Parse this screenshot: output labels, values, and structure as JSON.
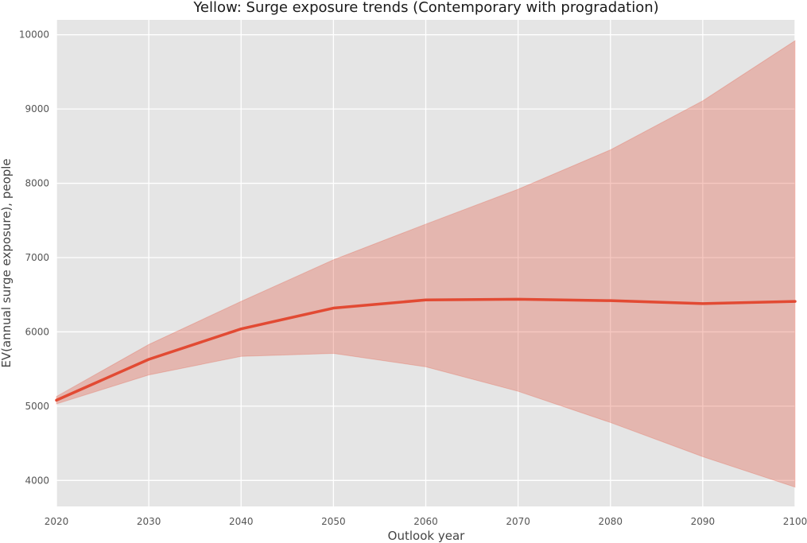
{
  "chart_data": {
    "type": "line",
    "title": "Yellow: Surge exposure trends (Contemporary with progradation)",
    "xlabel": "Outlook year",
    "ylabel": "EV(annual surge exposure), people",
    "xlim": [
      2020,
      2100
    ],
    "ylim": [
      3650,
      10200
    ],
    "x_ticks": [
      2020,
      2030,
      2040,
      2050,
      2060,
      2070,
      2080,
      2090,
      2100
    ],
    "y_ticks": [
      4000,
      5000,
      6000,
      7000,
      8000,
      9000,
      10000
    ],
    "grid": true,
    "legend": "none",
    "background_color": "#e5e5e5",
    "grid_color": "#ffffff",
    "series": [
      {
        "x": [
          2020,
          2030,
          2040,
          2050,
          2060,
          2070,
          2080,
          2090,
          2100
        ],
        "values": [
          5080,
          5630,
          6040,
          6320,
          6430,
          6440,
          6420,
          6380,
          6410
        ],
        "lower": [
          5030,
          5420,
          5670,
          5710,
          5530,
          5200,
          4780,
          4320,
          3910
        ],
        "upper": [
          5130,
          5830,
          6410,
          6970,
          7450,
          7920,
          8450,
          9110,
          9920
        ],
        "color": "#e24a33",
        "band_color": "#e24a33"
      }
    ]
  }
}
